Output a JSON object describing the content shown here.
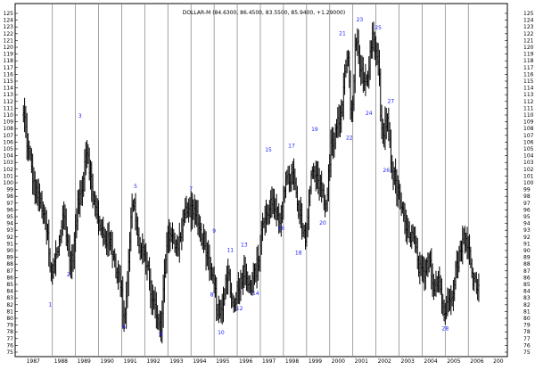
{
  "chart_data": {
    "type": "bar",
    "title": "DOLLAR-M (84.6300, 86.4500, 83.5500, 85.9400, +1.29000)",
    "ylim": [
      75,
      125
    ],
    "y_ticks": [
      75,
      76,
      77,
      78,
      79,
      80,
      81,
      82,
      83,
      84,
      85,
      86,
      87,
      88,
      89,
      90,
      91,
      92,
      93,
      94,
      95,
      96,
      97,
      98,
      99,
      100,
      101,
      102,
      103,
      104,
      105,
      106,
      107,
      108,
      109,
      110,
      111,
      112,
      113,
      114,
      115,
      116,
      117,
      118,
      119,
      120,
      121,
      122,
      123,
      124,
      125
    ],
    "x_range": [
      1986.7,
      2006.8
    ],
    "years": [
      {
        "label": "1987",
        "x": 1986.8
      },
      {
        "label": "1988",
        "x": 1988.0
      },
      {
        "label": "1989",
        "x": 1989.0
      },
      {
        "label": "1990",
        "x": 1990.0
      },
      {
        "label": "1991",
        "x": 1991.0
      },
      {
        "label": "1992",
        "x": 1992.0
      },
      {
        "label": "1993",
        "x": 1993.0
      },
      {
        "label": "1994",
        "x": 1994.0
      },
      {
        "label": "1995",
        "x": 1995.0
      },
      {
        "label": "1996",
        "x": 1996.0
      },
      {
        "label": "1997",
        "x": 1997.0
      },
      {
        "label": "1998",
        "x": 1998.0
      },
      {
        "label": "1999",
        "x": 1999.0
      },
      {
        "label": "2000",
        "x": 2000.0
      },
      {
        "label": "2001",
        "x": 2001.0
      },
      {
        "label": "2002",
        "x": 2002.0
      },
      {
        "label": "2003",
        "x": 2003.0
      },
      {
        "label": "2004",
        "x": 2004.0
      },
      {
        "label": "2005",
        "x": 2005.0
      },
      {
        "label": "2006",
        "x": 2006.0
      },
      {
        "label": "200",
        "x": 2007.0
      }
    ],
    "anchors": [
      [
        1986.75,
        110
      ],
      [
        1987.0,
        104
      ],
      [
        1987.25,
        99
      ],
      [
        1987.5,
        97
      ],
      [
        1987.75,
        93
      ],
      [
        1987.95,
        86
      ],
      [
        1988.2,
        90
      ],
      [
        1988.5,
        95
      ],
      [
        1988.8,
        88
      ],
      [
        1989.2,
        98
      ],
      [
        1989.5,
        105
      ],
      [
        1989.75,
        98
      ],
      [
        1990.1,
        93
      ],
      [
        1990.5,
        91
      ],
      [
        1990.9,
        86
      ],
      [
        1991.1,
        80.5
      ],
      [
        1991.5,
        97
      ],
      [
        1991.8,
        90
      ],
      [
        1992.0,
        89
      ],
      [
        1992.4,
        82
      ],
      [
        1992.65,
        78.5
      ],
      [
        1993.0,
        92
      ],
      [
        1993.4,
        91
      ],
      [
        1993.8,
        96
      ],
      [
        1994.1,
        96
      ],
      [
        1994.5,
        92
      ],
      [
        1994.9,
        86
      ],
      [
        1995.2,
        81
      ],
      [
        1995.3,
        80.5
      ],
      [
        1995.6,
        87
      ],
      [
        1995.8,
        82
      ],
      [
        1996.0,
        84
      ],
      [
        1996.3,
        87
      ],
      [
        1996.6,
        85
      ],
      [
        1996.9,
        88
      ],
      [
        1997.1,
        94
      ],
      [
        1997.5,
        97
      ],
      [
        1997.8,
        94
      ],
      [
        1998.1,
        100
      ],
      [
        1998.4,
        101
      ],
      [
        1998.7,
        95
      ],
      [
        1998.9,
        92
      ],
      [
        1999.3,
        102
      ],
      [
        1999.6,
        100
      ],
      [
        1999.8,
        96
      ],
      [
        2000.1,
        106
      ],
      [
        2000.5,
        110
      ],
      [
        2000.75,
        119
      ],
      [
        2000.95,
        110
      ],
      [
        2001.15,
        121
      ],
      [
        2001.4,
        116
      ],
      [
        2001.6,
        114
      ],
      [
        2001.85,
        121
      ],
      [
        2002.1,
        118
      ],
      [
        2002.25,
        107
      ],
      [
        2002.5,
        109
      ],
      [
        2002.75,
        101
      ],
      [
        2003.0,
        98
      ],
      [
        2003.3,
        93
      ],
      [
        2003.6,
        92
      ],
      [
        2003.9,
        87
      ],
      [
        2004.1,
        86
      ],
      [
        2004.3,
        89
      ],
      [
        2004.5,
        85
      ],
      [
        2004.7,
        86
      ],
      [
        2004.95,
        81
      ],
      [
        2005.3,
        84
      ],
      [
        2005.5,
        88
      ],
      [
        2005.8,
        92
      ],
      [
        2006.0,
        90
      ],
      [
        2006.2,
        86
      ],
      [
        2006.45,
        85
      ]
    ],
    "wave_labels": [
      {
        "text": "1",
        "x": 1987.9,
        "y": 81.8
      },
      {
        "text": "2",
        "x": 1988.7,
        "y": 86.2
      },
      {
        "text": "3",
        "x": 1989.2,
        "y": 109.6
      },
      {
        "text": "4",
        "x": 1991.1,
        "y": 78.4
      },
      {
        "text": "5",
        "x": 1991.6,
        "y": 99.2
      },
      {
        "text": "6",
        "x": 1992.7,
        "y": 77.4
      },
      {
        "text": "7",
        "x": 1994.0,
        "y": 98.8
      },
      {
        "text": "8",
        "x": 1994.9,
        "y": 83.2
      },
      {
        "text": "9",
        "x": 1995.0,
        "y": 92.6
      },
      {
        "text": "10",
        "x": 1995.3,
        "y": 77.6
      },
      {
        "text": "11",
        "x": 1995.7,
        "y": 89.8
      },
      {
        "text": "12",
        "x": 1996.1,
        "y": 81.2
      },
      {
        "text": "13",
        "x": 1996.3,
        "y": 90.6
      },
      {
        "text": "14",
        "x": 1996.8,
        "y": 83.4
      },
      {
        "text": "15",
        "x": 1997.35,
        "y": 104.6
      },
      {
        "text": "16",
        "x": 1997.9,
        "y": 93.0
      },
      {
        "text": "17",
        "x": 1998.35,
        "y": 105.2
      },
      {
        "text": "18",
        "x": 1998.65,
        "y": 89.4
      },
      {
        "text": "19",
        "x": 1999.35,
        "y": 107.6
      },
      {
        "text": "20",
        "x": 1999.7,
        "y": 93.8
      },
      {
        "text": "21",
        "x": 2000.55,
        "y": 121.8
      },
      {
        "text": "22",
        "x": 2000.85,
        "y": 106.4
      },
      {
        "text": "23",
        "x": 2001.3,
        "y": 123.8
      },
      {
        "text": "24",
        "x": 2001.7,
        "y": 110.0
      },
      {
        "text": "25",
        "x": 2002.1,
        "y": 122.6
      },
      {
        "text": "26",
        "x": 2002.45,
        "y": 101.6
      },
      {
        "text": "27",
        "x": 2002.65,
        "y": 111.8
      },
      {
        "text": "28",
        "x": 2005.0,
        "y": 78.2
      }
    ]
  }
}
